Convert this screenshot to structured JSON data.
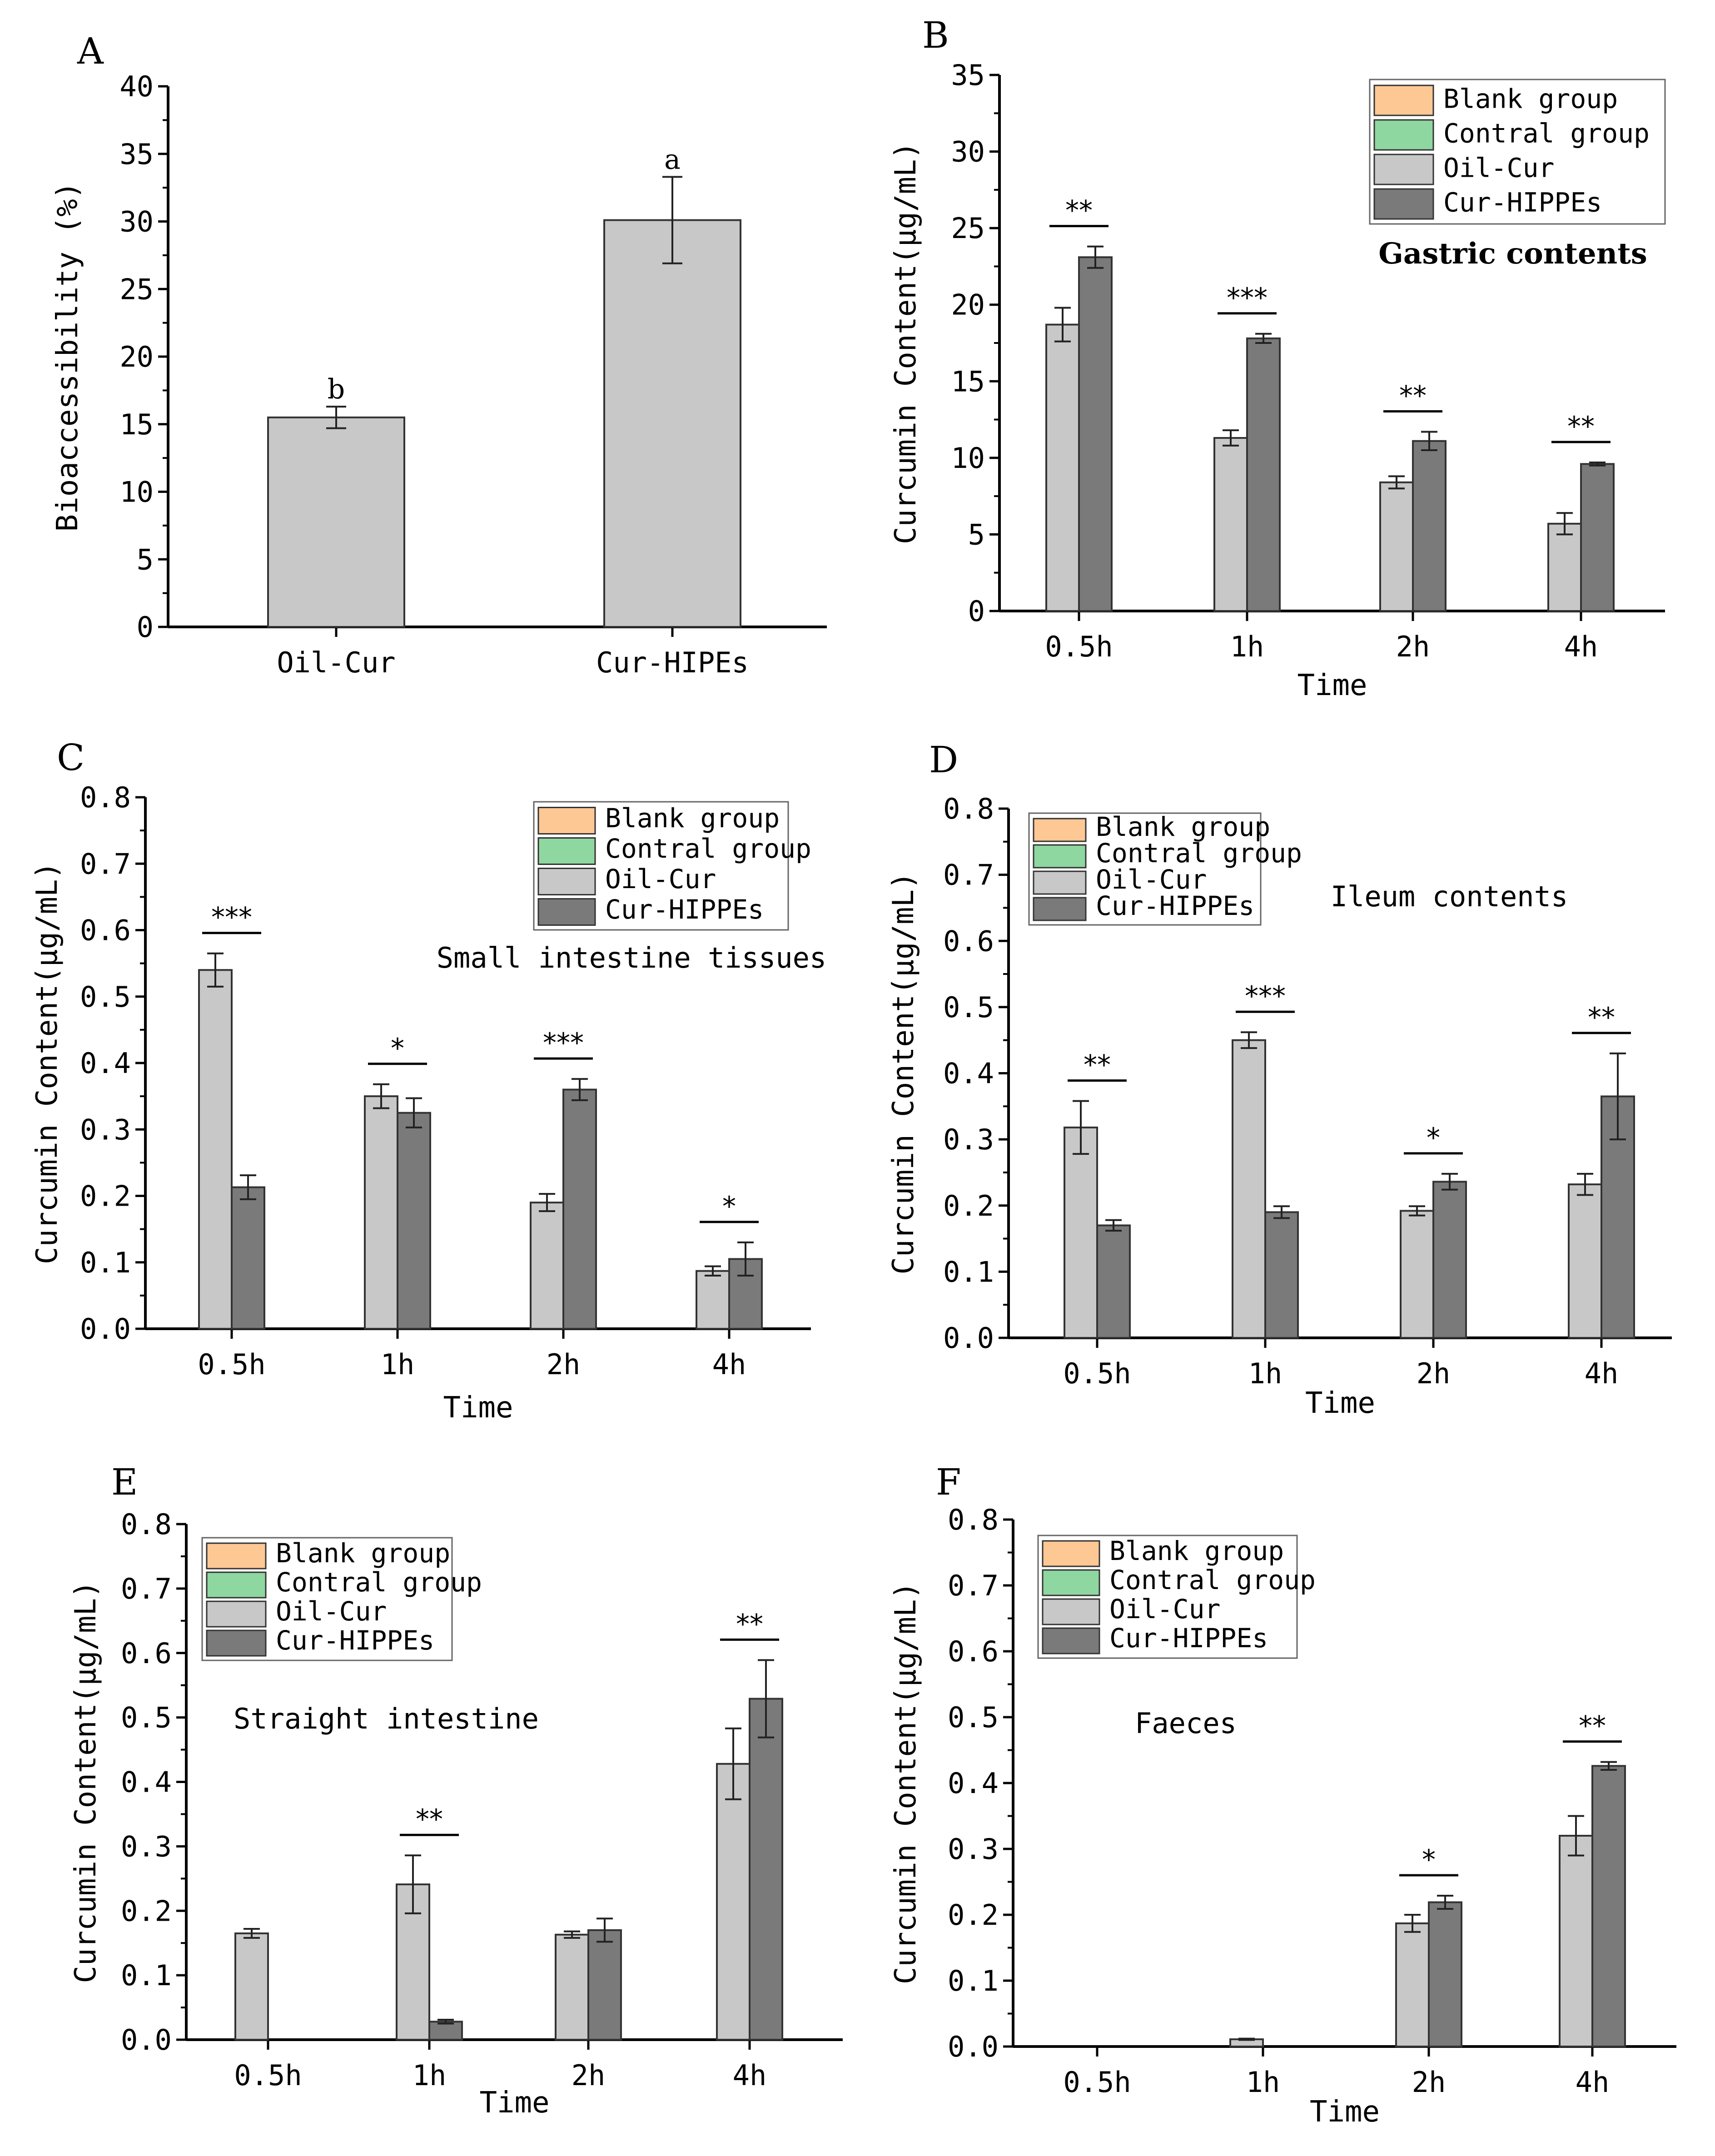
{
  "colors": {
    "blank": "#FDC894",
    "control": "#8FD7A0",
    "oil": "#C8C8C8",
    "hippe": "#7A7A7A",
    "axis": "#000000"
  },
  "chart_data": [
    {
      "id": "A",
      "panel_label": "A",
      "type": "bar",
      "categories": [
        "Oil-Cur",
        "Cur-HIPEs"
      ],
      "values": [
        15.5,
        30.1
      ],
      "errors": [
        0.8,
        3.2
      ],
      "letters": [
        "b",
        "a"
      ],
      "ylabel": "Bioaccessibility (%)",
      "xlabel": "",
      "ylim": [
        0,
        40
      ],
      "yticks": [
        "0",
        "5",
        "10",
        "15",
        "20",
        "25",
        "30",
        "35",
        "40"
      ]
    },
    {
      "id": "B",
      "panel_label": "B",
      "type": "bar",
      "categories": [
        "0.5h",
        "1h",
        "2h",
        "4h"
      ],
      "series": [
        {
          "name": "Oil-Cur",
          "values": [
            18.7,
            11.3,
            8.4,
            5.7
          ],
          "errors": [
            1.1,
            0.5,
            0.4,
            0.7
          ]
        },
        {
          "name": "Cur-HIPPEs",
          "values": [
            23.1,
            17.8,
            11.1,
            9.6
          ],
          "errors": [
            0.7,
            0.3,
            0.6,
            0.1
          ]
        }
      ],
      "legend": [
        "Blank group",
        "Contral group",
        "Oil-Cur",
        "Cur-HIPPEs"
      ],
      "significance": [
        "**",
        "***",
        "**",
        "**"
      ],
      "annotation": "Gastric contents",
      "ylabel": "Curcumin Content(μg/mL)",
      "xlabel": "Time",
      "ylim": [
        0,
        35
      ],
      "yticks": [
        "0",
        "5",
        "10",
        "15",
        "20",
        "25",
        "30",
        "35"
      ]
    },
    {
      "id": "C",
      "panel_label": "C",
      "type": "bar",
      "categories": [
        "0.5h",
        "1h",
        "2h",
        "4h"
      ],
      "series": [
        {
          "name": "Oil-Cur",
          "values": [
            0.54,
            0.35,
            0.19,
            0.087
          ],
          "errors": [
            0.025,
            0.018,
            0.013,
            0.007
          ]
        },
        {
          "name": "Cur-HIPPEs",
          "values": [
            0.213,
            0.325,
            0.36,
            0.105
          ],
          "errors": [
            0.018,
            0.022,
            0.016,
            0.025
          ]
        }
      ],
      "legend": [
        "Blank group",
        "Contral group",
        "Oil-Cur",
        "Cur-HIPPEs"
      ],
      "significance": [
        "***",
        "*",
        "***",
        "*"
      ],
      "annotation": "Small intestine tissues",
      "ylabel": "Curcumin Content(μg/mL)",
      "xlabel": "Time",
      "ylim": [
        0,
        0.8
      ],
      "yticks": [
        "0.0",
        "0.1",
        "0.2",
        "0.3",
        "0.4",
        "0.5",
        "0.6",
        "0.7",
        "0.8"
      ]
    },
    {
      "id": "D",
      "panel_label": "D",
      "type": "bar",
      "categories": [
        "0.5h",
        "1h",
        "2h",
        "4h"
      ],
      "series": [
        {
          "name": "Oil-Cur",
          "values": [
            0.318,
            0.45,
            0.192,
            0.232
          ],
          "errors": [
            0.04,
            0.012,
            0.007,
            0.016
          ]
        },
        {
          "name": "Cur-HIPPEs",
          "values": [
            0.17,
            0.19,
            0.236,
            0.365
          ],
          "errors": [
            0.008,
            0.009,
            0.012,
            0.065
          ]
        }
      ],
      "legend": [
        "Blank group",
        "Contral group",
        "Oil-Cur",
        "Cur-HIPPEs"
      ],
      "significance": [
        "**",
        "***",
        "*",
        "**"
      ],
      "annotation": "Ileum contents",
      "ylabel": "Curcumin Content(μg/mL)",
      "xlabel": "Time",
      "ylim": [
        0,
        0.8
      ],
      "yticks": [
        "0.0",
        "0.1",
        "0.2",
        "0.3",
        "0.4",
        "0.5",
        "0.6",
        "0.7",
        "0.8"
      ]
    },
    {
      "id": "E",
      "panel_label": "E",
      "type": "bar",
      "categories": [
        "0.5h",
        "1h",
        "2h",
        "4h"
      ],
      "series": [
        {
          "name": "Oil-Cur",
          "values": [
            0.165,
            0.241,
            0.163,
            0.428
          ],
          "errors": [
            0.007,
            0.045,
            0.005,
            0.055
          ]
        },
        {
          "name": "Cur-HIPPEs",
          "values": [
            0,
            0.028,
            0.17,
            0.529
          ],
          "errors": [
            0,
            0.003,
            0.018,
            0.06
          ]
        }
      ],
      "legend": [
        "Blank group",
        "Contral group",
        "Oil-Cur",
        "Cur-HIPPEs"
      ],
      "significance": [
        "",
        "**",
        "",
        "**"
      ],
      "annotation": "Straight intestine",
      "ylabel": "Curcumin Content(μg/mL)",
      "xlabel": "Time",
      "ylim": [
        0,
        0.8
      ],
      "yticks": [
        "0.0",
        "0.1",
        "0.2",
        "0.3",
        "0.4",
        "0.5",
        "0.6",
        "0.7",
        "0.8"
      ]
    },
    {
      "id": "F",
      "panel_label": "F",
      "type": "bar",
      "categories": [
        "0.5h",
        "1h",
        "2h",
        "4h"
      ],
      "series": [
        {
          "name": "Oil-Cur",
          "values": [
            0,
            0.011,
            0.187,
            0.32
          ],
          "errors": [
            0,
            0.001,
            0.013,
            0.03
          ]
        },
        {
          "name": "Cur-HIPPEs",
          "values": [
            0,
            0,
            0.219,
            0.426
          ],
          "errors": [
            0,
            0,
            0.01,
            0.006
          ]
        }
      ],
      "legend": [
        "Blank group",
        "Contral group",
        "Oil-Cur",
        "Cur-HIPPEs"
      ],
      "significance": [
        "",
        "",
        "*",
        "**"
      ],
      "annotation": "Faeces",
      "ylabel": "Curcumin Content(μg/mL)",
      "xlabel": "Time",
      "ylim": [
        0,
        0.8
      ],
      "yticks": [
        "0.0",
        "0.1",
        "0.2",
        "0.3",
        "0.4",
        "0.5",
        "0.6",
        "0.7",
        "0.8"
      ]
    }
  ]
}
